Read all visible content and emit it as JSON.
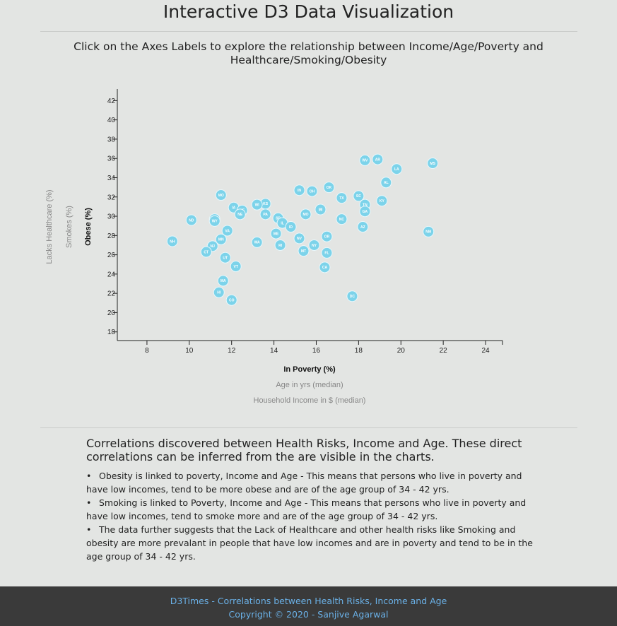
{
  "page": {
    "title": "Interactive D3 Data Visualization",
    "subtitle": "Click on the Axes Labels to explore the relationship between Income/Age/Poverty and Healthcare/Smoking/Obesity"
  },
  "colors": {
    "marker": "#7cd3ea",
    "footer_bg": "#3a3a3a",
    "footer_text": "#6ab0e6"
  },
  "chart_data": {
    "type": "scatter",
    "xlabel": "In Poverty (%)",
    "ylabel": "Obese (%)",
    "x_axis_options": [
      "In Poverty (%)",
      "Age in yrs (median)",
      "Household Income in $ (median)"
    ],
    "y_axis_options": [
      "Obese (%)",
      "Smokes (%)",
      "Lacks Healthcare (%)"
    ],
    "active_x": "In Poverty (%)",
    "active_y": "Obese (%)",
    "xlim": [
      6.6,
      24.8
    ],
    "ylim": [
      17.1,
      43.2
    ],
    "x_ticks": [
      8,
      10,
      12,
      14,
      16,
      18,
      20,
      22,
      24
    ],
    "y_ticks": [
      18,
      20,
      22,
      24,
      26,
      28,
      30,
      32,
      34,
      36,
      38,
      40,
      42
    ],
    "points": [
      {
        "label": "WV",
        "x": 18.3,
        "y": 35.8
      },
      {
        "label": "AR",
        "x": 18.9,
        "y": 35.9
      },
      {
        "label": "LA",
        "x": 19.8,
        "y": 34.9
      },
      {
        "label": "MS",
        "x": 21.5,
        "y": 35.5
      },
      {
        "label": "AL",
        "x": 19.3,
        "y": 33.5
      },
      {
        "label": "OK",
        "x": 16.6,
        "y": 33.0
      },
      {
        "label": "IN",
        "x": 15.2,
        "y": 32.7
      },
      {
        "label": "OH",
        "x": 15.8,
        "y": 32.6
      },
      {
        "label": "MO",
        "x": 11.5,
        "y": 32.2
      },
      {
        "label": "TX",
        "x": 17.2,
        "y": 31.9
      },
      {
        "label": "SC",
        "x": 18.0,
        "y": 32.1
      },
      {
        "label": "KY",
        "x": 19.1,
        "y": 31.6
      },
      {
        "label": "TN",
        "x": 18.3,
        "y": 31.2
      },
      {
        "label": "GA",
        "x": 18.3,
        "y": 30.5
      },
      {
        "label": "MI",
        "x": 16.2,
        "y": 30.7
      },
      {
        "label": "KS",
        "x": 13.6,
        "y": 31.3
      },
      {
        "label": "WI",
        "x": 13.2,
        "y": 31.2
      },
      {
        "label": "IA",
        "x": 12.1,
        "y": 30.9
      },
      {
        "label": "DE",
        "x": 12.5,
        "y": 30.6
      },
      {
        "label": "NE",
        "x": 12.4,
        "y": 30.2
      },
      {
        "label": "PA",
        "x": 13.6,
        "y": 30.2
      },
      {
        "label": "MO",
        "x": 15.5,
        "y": 30.2
      },
      {
        "label": "NC",
        "x": 17.2,
        "y": 29.7
      },
      {
        "label": "SD",
        "x": 14.2,
        "y": 29.8
      },
      {
        "label": "IL",
        "x": 14.4,
        "y": 29.3
      },
      {
        "label": "ND",
        "x": 10.1,
        "y": 29.6
      },
      {
        "label": "ME",
        "x": 11.2,
        "y": 29.7
      },
      {
        "label": "WY",
        "x": 11.2,
        "y": 29.5
      },
      {
        "label": "ID",
        "x": 14.8,
        "y": 28.9
      },
      {
        "label": "AZ",
        "x": 18.2,
        "y": 28.9
      },
      {
        "label": "VA",
        "x": 11.8,
        "y": 28.5
      },
      {
        "label": "NM",
        "x": 21.3,
        "y": 28.4
      },
      {
        "label": "ME",
        "x": 14.1,
        "y": 28.2
      },
      {
        "label": "OR",
        "x": 16.5,
        "y": 27.9
      },
      {
        "label": "NH",
        "x": 9.2,
        "y": 27.4
      },
      {
        "label": "MN",
        "x": 11.5,
        "y": 27.6
      },
      {
        "label": "NV",
        "x": 15.2,
        "y": 27.7
      },
      {
        "label": "WA",
        "x": 13.2,
        "y": 27.3
      },
      {
        "label": "RI",
        "x": 14.3,
        "y": 27.0
      },
      {
        "label": "NY",
        "x": 15.9,
        "y": 27.0
      },
      {
        "label": "NJ",
        "x": 11.1,
        "y": 26.9
      },
      {
        "label": "MT",
        "x": 15.4,
        "y": 26.4
      },
      {
        "label": "FL",
        "x": 16.5,
        "y": 26.2
      },
      {
        "label": "CT",
        "x": 10.8,
        "y": 26.3
      },
      {
        "label": "UT",
        "x": 11.7,
        "y": 25.7
      },
      {
        "label": "VT",
        "x": 12.2,
        "y": 24.8
      },
      {
        "label": "CA",
        "x": 16.4,
        "y": 24.7
      },
      {
        "label": "MA",
        "x": 11.6,
        "y": 23.3
      },
      {
        "label": "HI",
        "x": 11.4,
        "y": 22.1
      },
      {
        "label": "DC",
        "x": 17.7,
        "y": 21.7
      },
      {
        "label": "CO",
        "x": 12.0,
        "y": 21.3
      }
    ]
  },
  "notes": {
    "heading": "Correlations discovered between Health Risks, Income and Age. These direct correlations can be inferred from the are visible in the charts.",
    "items": [
      "Obesity is linked to poverty, Income and Age - This means that persons who live in poverty and have low incomes, tend to be more obese and are of the age group of 34 - 42 yrs.",
      "Smoking is linked to Poverty, Income and Age - This means that persons who live in poverty and have low incomes, tend to smoke more and are of the age group of 34 - 42 yrs.",
      "The data further suggests that the Lack of Healthcare and other health risks like Smoking and obesity are more prevalant in people that have low incomes and are in poverty and tend to be in the age group of 34 - 42 yrs."
    ],
    "bullet": "•"
  },
  "footer": {
    "line1": "D3Times - Correlations between Health Risks, Income and Age",
    "line2": "Copyright © 2020 - Sanjive Agarwal"
  }
}
